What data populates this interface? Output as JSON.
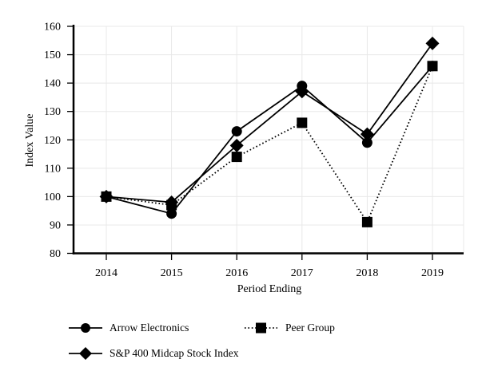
{
  "chart_data": {
    "type": "line",
    "title": "",
    "xlabel": "Period Ending",
    "ylabel": "Index Value",
    "categories": [
      "2014",
      "2015",
      "2016",
      "2017",
      "2018",
      "2019"
    ],
    "series": [
      {
        "name": "Arrow Electronics",
        "marker": "circle",
        "line_style": "solid",
        "values": [
          100,
          94,
          123,
          139,
          119,
          146
        ]
      },
      {
        "name": "Peer Group",
        "marker": "square",
        "line_style": "dotted",
        "values": [
          100,
          97,
          114,
          126,
          91,
          146
        ]
      },
      {
        "name": "S&P 400 Midcap Stock Index",
        "marker": "diamond",
        "line_style": "solid",
        "values": [
          100,
          98,
          118,
          137,
          122,
          154
        ]
      }
    ],
    "ylim": [
      80,
      160
    ],
    "ytick_step": 10,
    "grid": true,
    "legend_position": "bottom-left",
    "colors": {
      "foreground": "#000000",
      "grid": "#e8e8e8",
      "background": "#ffffff"
    }
  }
}
